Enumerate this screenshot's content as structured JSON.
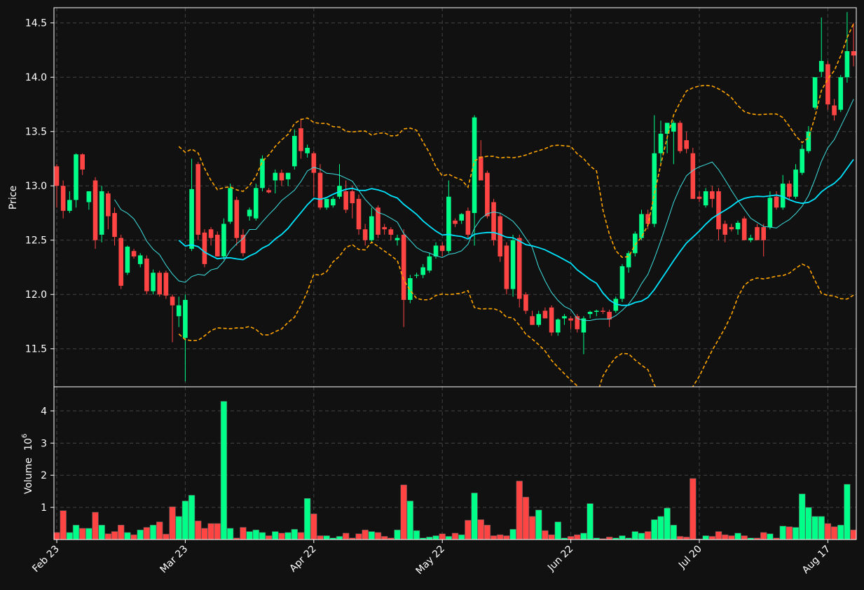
{
  "chart_data": {
    "type": "candlestick",
    "title": "",
    "xlabel": "",
    "colors": {
      "background": "#111111",
      "up": "#00ff88",
      "down": "#ff4444",
      "ma_fast": "#3ee0e0",
      "ma_slow": "#00e5ff",
      "bands": "#ffa500",
      "grid": "#444444",
      "axes": "#ffffff"
    },
    "price_panel": {
      "ylabel": "Price",
      "ylim": [
        11.15,
        14.64
      ],
      "yticks": [
        "11.5",
        "12.0",
        "12.5",
        "13.0",
        "13.5",
        "14.0",
        "14.5"
      ]
    },
    "volume_panel": {
      "ylabel": "Volume",
      "unit_label": "10",
      "unit_exponent": "6",
      "ylim": [
        0,
        4.75
      ],
      "yticks": [
        "1",
        "2",
        "3",
        "4"
      ]
    },
    "x_ticks": [
      {
        "label": "Feb 23",
        "index": 0
      },
      {
        "label": "Mar 23",
        "index": 20
      },
      {
        "label": "Apr 22",
        "index": 40
      },
      {
        "label": "May 22",
        "index": 60
      },
      {
        "label": "Jun 22",
        "index": 80
      },
      {
        "label": "Jul 20",
        "index": 100
      },
      {
        "label": "Aug 17",
        "index": 120
      }
    ],
    "ohlcv": [
      [
        13.18,
        13.2,
        12.8,
        13.0,
        0.22
      ],
      [
        13.0,
        13.05,
        12.7,
        12.77,
        0.9
      ],
      [
        12.77,
        12.95,
        12.75,
        12.87,
        0.22
      ],
      [
        12.87,
        13.3,
        12.8,
        13.29,
        0.45
      ],
      [
        13.29,
        13.3,
        13.1,
        13.15,
        0.35
      ],
      [
        12.85,
        12.95,
        12.78,
        12.95,
        0.35
      ],
      [
        13.05,
        13.08,
        12.42,
        12.5,
        0.85
      ],
      [
        12.55,
        13.0,
        12.48,
        12.95,
        0.45
      ],
      [
        12.93,
        12.95,
        12.6,
        12.72,
        0.18
      ],
      [
        12.75,
        12.8,
        12.45,
        12.53,
        0.25
      ],
      [
        12.52,
        12.55,
        12.05,
        12.08,
        0.45
      ],
      [
        12.2,
        12.45,
        12.18,
        12.44,
        0.22
      ],
      [
        12.4,
        12.42,
        12.33,
        12.35,
        0.15
      ],
      [
        12.28,
        12.38,
        12.25,
        12.36,
        0.3
      ],
      [
        12.33,
        12.36,
        12.0,
        12.03,
        0.38
      ],
      [
        12.03,
        12.23,
        12.0,
        12.2,
        0.45
      ],
      [
        12.2,
        12.22,
        11.98,
        12.0,
        0.55
      ],
      [
        12.2,
        12.22,
        11.96,
        11.99,
        0.17
      ],
      [
        11.98,
        12.0,
        11.56,
        11.9,
        1.02
      ],
      [
        11.8,
        11.98,
        11.7,
        11.9,
        0.72
      ],
      [
        11.6,
        12.0,
        11.2,
        11.95,
        1.2
      ],
      [
        12.42,
        13.25,
        12.4,
        12.97,
        1.38
      ],
      [
        13.2,
        13.22,
        12.5,
        12.55,
        0.58
      ],
      [
        12.57,
        12.6,
        12.25,
        12.28,
        0.35
      ],
      [
        12.6,
        12.62,
        12.45,
        12.52,
        0.5
      ],
      [
        12.55,
        12.58,
        12.35,
        12.35,
        0.5
      ],
      [
        12.35,
        12.7,
        12.32,
        12.65,
        4.3
      ],
      [
        12.67,
        13.02,
        12.65,
        12.98,
        0.35
      ],
      [
        12.87,
        12.9,
        12.45,
        12.52,
        0.05
      ],
      [
        12.55,
        12.6,
        12.35,
        12.38,
        0.38
      ],
      [
        12.72,
        12.8,
        12.68,
        12.78,
        0.25
      ],
      [
        12.7,
        13.02,
        12.68,
        12.98,
        0.3
      ],
      [
        12.98,
        13.28,
        12.95,
        13.25,
        0.22
      ],
      [
        12.96,
        12.98,
        12.93,
        12.94,
        0.12
      ],
      [
        13.05,
        13.15,
        12.93,
        13.12,
        0.25
      ],
      [
        13.12,
        13.15,
        13.0,
        13.05,
        0.2
      ],
      [
        13.06,
        13.12,
        13.0,
        13.12,
        0.22
      ],
      [
        13.18,
        13.52,
        13.15,
        13.46,
        0.32
      ],
      [
        13.53,
        13.62,
        13.25,
        13.32,
        0.22
      ],
      [
        13.3,
        13.38,
        13.26,
        13.35,
        1.28
      ],
      [
        13.3,
        13.32,
        12.9,
        13.12,
        0.8
      ],
      [
        13.12,
        13.2,
        12.78,
        12.8,
        0.12
      ],
      [
        12.8,
        12.88,
        12.78,
        12.88,
        0.12
      ],
      [
        12.82,
        12.9,
        12.8,
        12.88,
        0.05
      ],
      [
        12.9,
        13.2,
        12.88,
        13.0,
        0.1
      ],
      [
        12.95,
        13.05,
        12.75,
        12.78,
        0.2
      ],
      [
        12.95,
        13.0,
        12.7,
        12.84,
        0.05
      ],
      [
        12.88,
        12.92,
        12.55,
        12.6,
        0.18
      ],
      [
        12.6,
        12.65,
        12.45,
        12.5,
        0.3
      ],
      [
        12.5,
        12.8,
        12.48,
        12.72,
        0.25
      ],
      [
        12.8,
        12.82,
        12.52,
        12.55,
        0.22
      ],
      [
        12.62,
        12.65,
        12.55,
        12.6,
        0.1
      ],
      [
        12.6,
        12.62,
        12.5,
        12.55,
        0.05
      ],
      [
        12.5,
        12.55,
        12.45,
        12.52,
        0.3
      ],
      [
        12.55,
        12.6,
        11.7,
        11.95,
        1.7
      ],
      [
        11.95,
        12.18,
        11.92,
        12.15,
        1.2
      ],
      [
        12.18,
        12.2,
        12.15,
        12.18,
        0.28
      ],
      [
        12.18,
        12.28,
        12.15,
        12.25,
        0.05
      ],
      [
        12.22,
        12.38,
        12.2,
        12.35,
        0.08
      ],
      [
        12.35,
        12.48,
        12.33,
        12.45,
        0.12
      ],
      [
        12.45,
        12.48,
        12.35,
        12.4,
        0.18
      ],
      [
        12.4,
        13.05,
        12.38,
        12.9,
        0.1
      ],
      [
        12.68,
        12.7,
        12.62,
        12.65,
        0.2
      ],
      [
        12.68,
        12.75,
        12.65,
        12.74,
        0.15
      ],
      [
        12.77,
        12.8,
        12.52,
        12.55,
        0.6
      ],
      [
        12.75,
        13.65,
        12.45,
        13.63,
        1.45
      ],
      [
        13.27,
        13.42,
        13.05,
        13.05,
        0.62
      ],
      [
        13.12,
        13.14,
        12.7,
        12.72,
        0.45
      ],
      [
        12.85,
        12.88,
        12.45,
        12.5,
        0.12
      ],
      [
        12.72,
        12.75,
        12.3,
        12.35,
        0.15
      ],
      [
        12.45,
        12.48,
        12.0,
        12.05,
        0.12
      ],
      [
        12.05,
        12.55,
        11.98,
        12.5,
        0.32
      ],
      [
        12.52,
        12.55,
        11.88,
        11.96,
        1.82
      ],
      [
        12.0,
        12.02,
        11.82,
        11.85,
        1.32
      ],
      [
        11.8,
        11.85,
        11.72,
        11.72,
        0.72
      ],
      [
        11.72,
        11.85,
        11.7,
        11.82,
        0.92
      ],
      [
        11.85,
        11.88,
        11.78,
        11.78,
        0.28
      ],
      [
        11.88,
        11.9,
        11.62,
        11.65,
        0.15
      ],
      [
        11.65,
        11.78,
        11.62,
        11.77,
        0.55
      ],
      [
        11.78,
        11.82,
        11.72,
        11.8,
        0.05
      ],
      [
        11.78,
        11.8,
        11.68,
        11.76,
        0.1
      ],
      [
        11.8,
        11.82,
        11.65,
        11.68,
        0.15
      ],
      [
        11.65,
        11.8,
        11.45,
        11.78,
        0.2
      ],
      [
        11.82,
        11.85,
        11.78,
        11.84,
        1.12
      ],
      [
        11.84,
        11.86,
        11.8,
        11.85,
        0.05
      ],
      [
        11.85,
        11.88,
        11.82,
        11.84,
        0.03
      ],
      [
        11.84,
        11.86,
        11.7,
        11.77,
        0.08
      ],
      [
        11.85,
        11.98,
        11.83,
        11.96,
        0.05
      ],
      [
        11.96,
        12.28,
        11.93,
        12.26,
        0.12
      ],
      [
        12.25,
        12.4,
        12.2,
        12.38,
        0.05
      ],
      [
        12.38,
        12.58,
        12.35,
        12.56,
        0.25
      ],
      [
        12.52,
        12.78,
        12.5,
        12.74,
        0.2
      ],
      [
        12.74,
        12.78,
        12.6,
        12.65,
        0.25
      ],
      [
        12.65,
        13.65,
        12.62,
        13.3,
        0.62
      ],
      [
        13.3,
        13.6,
        13.2,
        13.48,
        0.72
      ],
      [
        13.48,
        13.5,
        13.3,
        13.58,
        0.98
      ],
      [
        13.5,
        13.6,
        13.2,
        13.58,
        0.45
      ],
      [
        13.58,
        13.6,
        13.3,
        13.32,
        0.1
      ],
      [
        13.42,
        13.5,
        13.3,
        13.34,
        0.08
      ],
      [
        13.3,
        13.35,
        12.88,
        12.88,
        1.9
      ],
      [
        12.9,
        12.95,
        12.85,
        12.88,
        0.02
      ],
      [
        12.82,
        12.98,
        12.8,
        12.95,
        0.12
      ],
      [
        12.95,
        13.0,
        12.8,
        12.88,
        0.1
      ],
      [
        12.95,
        12.98,
        12.5,
        12.6,
        0.25
      ],
      [
        12.65,
        12.68,
        12.48,
        12.55,
        0.15
      ],
      [
        12.62,
        12.65,
        12.58,
        12.6,
        0.12
      ],
      [
        12.6,
        12.68,
        12.55,
        12.66,
        0.2
      ],
      [
        12.7,
        12.72,
        12.5,
        12.5,
        0.12
      ],
      [
        12.5,
        12.55,
        12.48,
        12.52,
        0.05
      ],
      [
        12.62,
        12.65,
        12.55,
        12.5,
        0.05
      ],
      [
        12.62,
        12.65,
        12.35,
        12.5,
        0.22
      ],
      [
        12.62,
        12.95,
        12.6,
        12.89,
        0.18
      ],
      [
        12.9,
        12.95,
        12.78,
        12.8,
        0.05
      ],
      [
        12.8,
        13.1,
        12.78,
        13.02,
        0.42
      ],
      [
        13.02,
        13.05,
        12.88,
        12.9,
        0.4
      ],
      [
        12.9,
        13.2,
        12.88,
        13.15,
        0.38
      ],
      [
        13.12,
        13.38,
        13.1,
        13.34,
        1.42
      ],
      [
        13.32,
        13.55,
        13.3,
        13.5,
        1.0
      ],
      [
        13.72,
        14.0,
        13.7,
        14.0,
        0.72
      ],
      [
        14.05,
        14.55,
        14.0,
        14.15,
        0.72
      ],
      [
        14.12,
        14.15,
        13.7,
        13.75,
        0.5
      ],
      [
        13.74,
        13.8,
        13.6,
        13.65,
        0.4
      ],
      [
        13.7,
        14.02,
        13.68,
        14.0,
        0.45
      ],
      [
        14.0,
        14.6,
        13.95,
        14.24,
        1.72
      ],
      [
        14.24,
        14.5,
        14.1,
        14.2,
        0.3
      ]
    ]
  }
}
